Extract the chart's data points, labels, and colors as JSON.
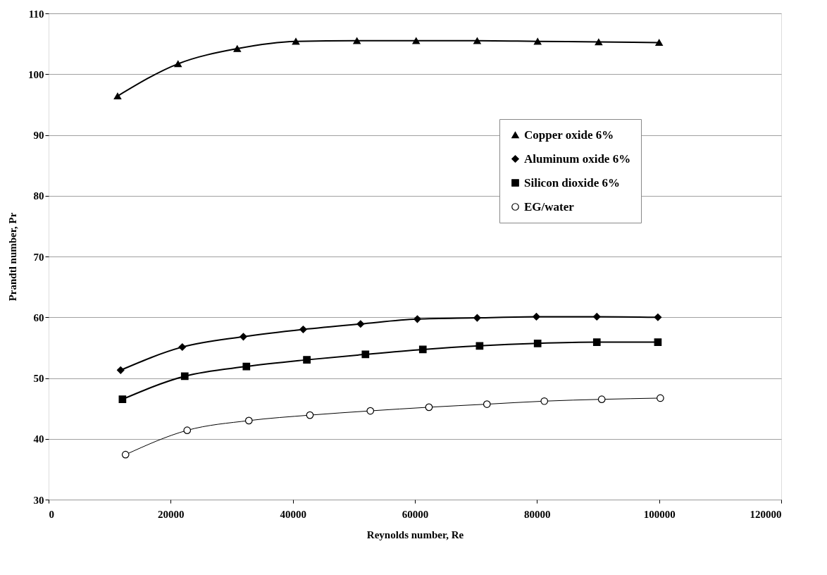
{
  "chart_data": {
    "type": "line",
    "xlabel": "Reynolds number, Re",
    "ylabel": "Prandtl number, Pr",
    "xlim": [
      0,
      120000
    ],
    "xticks": [
      0,
      20000,
      40000,
      60000,
      80000,
      100000,
      120000
    ],
    "ylim": [
      30,
      110
    ],
    "yticks": [
      30,
      40,
      50,
      60,
      70,
      80,
      90,
      100,
      110
    ],
    "grid": "y",
    "legend": "right",
    "series": [
      {
        "name": "Copper oxide 6%",
        "color": "#000000",
        "marker": "triangle",
        "x": [
          11300,
          21200,
          30900,
          40500,
          50500,
          60200,
          70200,
          80100,
          90100,
          100000
        ],
        "values": [
          96.4,
          101.7,
          104.2,
          105.4,
          105.5,
          105.5,
          105.5,
          105.4,
          105.3,
          105.2
        ]
      },
      {
        "name": "Aluminum oxide 6%",
        "color": "#000000",
        "marker": "diamond",
        "x": [
          11800,
          21900,
          31900,
          41700,
          51100,
          60400,
          70200,
          79900,
          89800,
          99800
        ],
        "values": [
          51.3,
          55.1,
          56.8,
          58.0,
          58.9,
          59.7,
          59.9,
          60.1,
          60.1,
          60.0
        ]
      },
      {
        "name": "Silicon dioxide 6%",
        "color": "#000000",
        "marker": "square",
        "x": [
          12100,
          22300,
          32400,
          42300,
          51900,
          61300,
          70600,
          80100,
          89800,
          99800
        ],
        "values": [
          46.5,
          50.3,
          51.9,
          53.0,
          53.9,
          54.7,
          55.3,
          55.7,
          55.9,
          55.9
        ]
      },
      {
        "name": "EG/water",
        "color": "#000000",
        "marker": "circle",
        "x": [
          12600,
          22700,
          32800,
          42800,
          52700,
          62300,
          71800,
          81200,
          90600,
          100200
        ],
        "values": [
          37.4,
          41.4,
          43.0,
          43.9,
          44.6,
          45.2,
          45.7,
          46.2,
          46.5,
          46.7
        ]
      }
    ]
  }
}
